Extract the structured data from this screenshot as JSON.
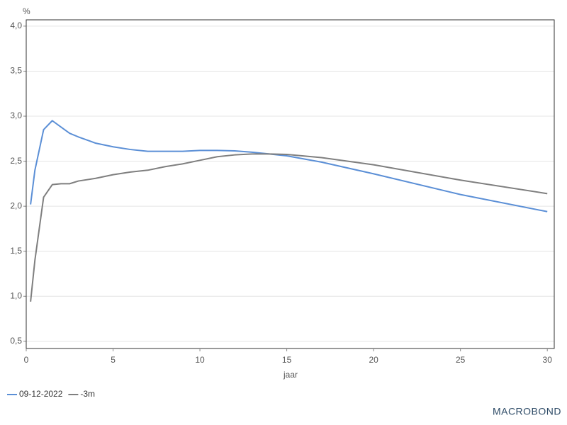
{
  "chart_data": {
    "type": "line",
    "y_unit": "%",
    "x_label": "jaar",
    "brand": "MACROBOND",
    "x": [
      0.25,
      0.5,
      1,
      1.5,
      2,
      2.5,
      3,
      4,
      5,
      6,
      7,
      8,
      9,
      10,
      11,
      12,
      13,
      14,
      15,
      17,
      20,
      25,
      30
    ],
    "series": [
      {
        "name": "09-12-2022",
        "color": "#5b8fd6",
        "values": [
          2.02,
          2.4,
          2.85,
          2.95,
          2.88,
          2.81,
          2.77,
          2.7,
          2.66,
          2.63,
          2.61,
          2.61,
          2.61,
          2.62,
          2.62,
          2.615,
          2.6,
          2.58,
          2.56,
          2.49,
          2.36,
          2.13,
          1.94
        ]
      },
      {
        "name": "-3m",
        "color": "#7f7f7f",
        "values": [
          0.94,
          1.4,
          2.1,
          2.24,
          2.25,
          2.25,
          2.28,
          2.31,
          2.35,
          2.38,
          2.4,
          2.44,
          2.47,
          2.51,
          2.55,
          2.57,
          2.58,
          2.58,
          2.575,
          2.54,
          2.46,
          2.29,
          2.14
        ]
      }
    ],
    "xlim": [
      0,
      30.4
    ],
    "ylim": [
      0.42,
      4.07
    ],
    "xticks": [
      0,
      5,
      10,
      15,
      20,
      25,
      30
    ],
    "yticks": [
      {
        "value": 0.5,
        "label": "0,5"
      },
      {
        "value": 1,
        "label": "1,0"
      },
      {
        "value": 1.5,
        "label": "1,5"
      },
      {
        "value": 2,
        "label": "2,0"
      },
      {
        "value": 2.5,
        "label": "2,5"
      },
      {
        "value": 3,
        "label": "3,0"
      },
      {
        "value": 3.5,
        "label": "3,5"
      },
      {
        "value": 4,
        "label": "4,0"
      }
    ],
    "grid": true,
    "legend": "bottom-left"
  }
}
